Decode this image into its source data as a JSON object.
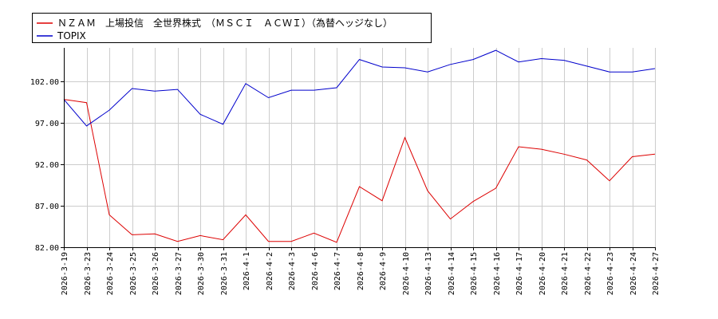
{
  "chart_data": {
    "type": "line",
    "title": "",
    "xlabel": "",
    "ylabel": "",
    "ylim": [
      82.0,
      106.0
    ],
    "yticks": [
      "82.00",
      "87.00",
      "92.00",
      "97.00",
      "102.00"
    ],
    "categories": [
      "2026-3-19",
      "2026-3-23",
      "2026-3-24",
      "2026-3-25",
      "2026-3-26",
      "2026-3-27",
      "2026-3-30",
      "2026-3-31",
      "2026-4-1",
      "2026-4-2",
      "2026-4-3",
      "2026-4-6",
      "2026-4-7",
      "2026-4-8",
      "2026-4-9",
      "2026-4-10",
      "2026-4-13",
      "2026-4-14",
      "2026-4-15",
      "2026-4-16",
      "2026-4-17",
      "2026-4-20",
      "2026-4-21",
      "2026-4-22",
      "2026-4-23",
      "2026-4-24",
      "2026-4-27"
    ],
    "grid": true,
    "legend_position": "top-left",
    "series": [
      {
        "name": "ＮＺＡＭ　上場投信　全世界株式　（ＭＳＣＩ　ＡＣＷＩ）（為替ヘッジなし）",
        "color": "#dd0000",
        "values": [
          99.8,
          99.4,
          85.9,
          83.5,
          83.6,
          82.7,
          83.4,
          82.9,
          85.9,
          82.7,
          82.7,
          83.7,
          82.6,
          89.3,
          87.6,
          95.2,
          88.8,
          85.4,
          87.5,
          89.1,
          94.1,
          93.8,
          93.2,
          92.5,
          90.0,
          92.9,
          93.2
        ]
      },
      {
        "name": "TOPIX",
        "color": "#0000cc",
        "values": [
          99.8,
          96.6,
          98.5,
          101.1,
          100.8,
          101.0,
          98.0,
          96.8,
          101.7,
          100.0,
          100.9,
          100.9,
          101.2,
          104.6,
          103.7,
          103.6,
          103.1,
          104.0,
          104.6,
          105.7,
          104.3,
          104.7,
          104.5,
          103.8,
          103.1,
          103.1,
          103.5
        ]
      }
    ]
  }
}
